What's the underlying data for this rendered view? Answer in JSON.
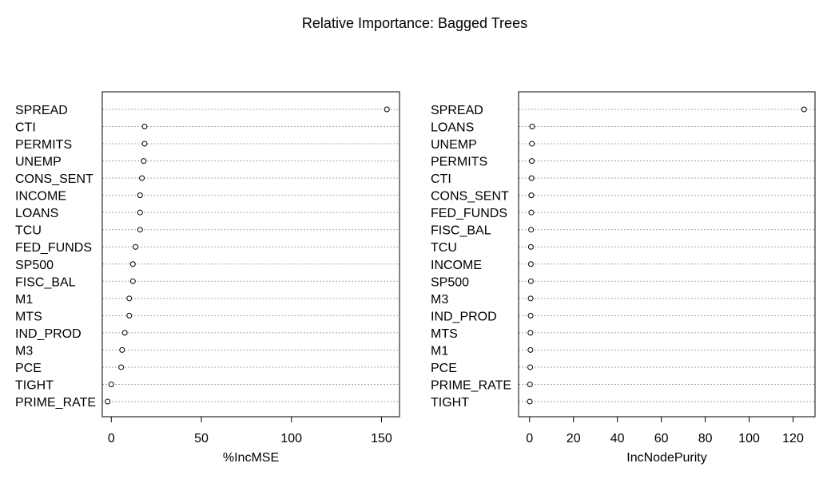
{
  "title": "Relative Importance: Bagged Trees",
  "chart_data": [
    {
      "type": "scatter",
      "subtype": "dotchart",
      "xlabel": "%IncMSE",
      "xlim": [
        -5,
        160
      ],
      "xticks": [
        0,
        50,
        100,
        150
      ],
      "categories": [
        "SPREAD",
        "CTI",
        "PERMITS",
        "UNEMP",
        "CONS_SENT",
        "INCOME",
        "LOANS",
        "TCU",
        "FED_FUNDS",
        "SP500",
        "FISC_BAL",
        "M1",
        "MTS",
        "IND_PROD",
        "M3",
        "PCE",
        "TIGHT",
        "PRIME_RATE"
      ],
      "values": [
        153,
        18.5,
        18.5,
        18,
        17,
        16,
        16,
        16,
        13.5,
        12,
        12,
        10,
        10,
        7.5,
        6,
        5.5,
        0,
        -2
      ]
    },
    {
      "type": "scatter",
      "subtype": "dotchart",
      "xlabel": "IncNodePurity",
      "xlim": [
        -5,
        130
      ],
      "xticks": [
        0,
        20,
        40,
        60,
        80,
        100,
        120
      ],
      "categories": [
        "SPREAD",
        "LOANS",
        "UNEMP",
        "PERMITS",
        "CTI",
        "CONS_SENT",
        "FED_FUNDS",
        "FISC_BAL",
        "TCU",
        "INCOME",
        "SP500",
        "M3",
        "IND_PROD",
        "MTS",
        "M1",
        "PCE",
        "PRIME_RATE",
        "TIGHT"
      ],
      "values": [
        125,
        1.2,
        1.1,
        1.0,
        0.9,
        0.8,
        0.8,
        0.7,
        0.6,
        0.6,
        0.6,
        0.5,
        0.5,
        0.4,
        0.4,
        0.3,
        0.2,
        0.1
      ]
    }
  ]
}
